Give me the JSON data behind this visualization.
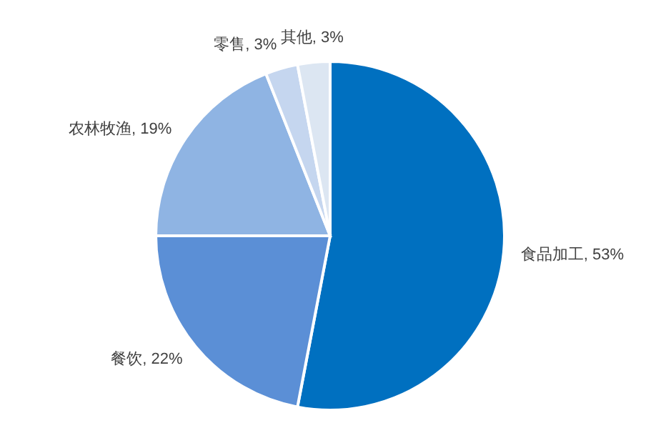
{
  "chart_data": {
    "type": "pie",
    "categories": [
      "食品加工",
      "餐饮",
      "农林牧渔",
      "零售",
      "其他"
    ],
    "values": [
      53,
      22,
      19,
      3,
      3
    ],
    "value_labels": [
      "53%",
      "22%",
      "19%",
      "3%",
      "3%"
    ],
    "colors": [
      "#0070c0",
      "#5b8fd6",
      "#8fb4e3",
      "#c5d6ef",
      "#dce6f2"
    ]
  }
}
